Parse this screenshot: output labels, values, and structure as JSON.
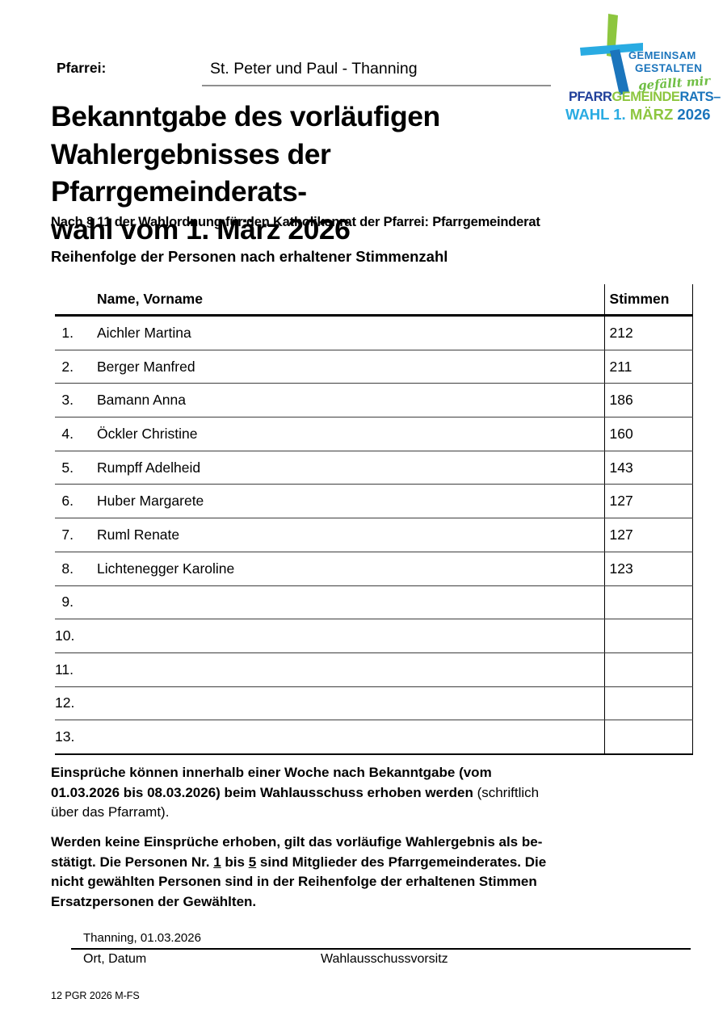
{
  "page": {
    "pfarrei_label": "Pfarrei:",
    "pfarrei_value": "St. Peter und Paul - Thanning",
    "title": "Bekanntgabe des vorläufigen\nWahlergebnisses der Pfarrgemeinderats-\nwahl vom 1. März 2026",
    "subtitle": "Nach § 11 der Wahlordnung für den Katholikenrat der Pfarrei: Pfarrgemeinderat",
    "section_heading": "Reihenfolge der Personen nach erhaltener Stimmenzahl"
  },
  "logo": {
    "tagline1": "GEMEINSAM",
    "tagline2": "GESTALTEN",
    "script": "gefällt mir",
    "colors": {
      "dark_blue": "#21409a",
      "medium_blue": "#1b75bc",
      "light_blue": "#29abe2",
      "green": "#8dc63f"
    },
    "wordmark": {
      "line1": [
        {
          "text": "PFARR",
          "color": "#21409a"
        },
        {
          "text": "GEMEINDE",
          "color": "#8dc63f"
        },
        {
          "text": "RATS–",
          "color": "#1b75bc"
        }
      ],
      "line2": [
        {
          "text": "WAHL 1. ",
          "color": "#29abe2"
        },
        {
          "text": "MÄRZ ",
          "color": "#8dc63f"
        },
        {
          "text": "2026",
          "color": "#1b75bc"
        }
      ]
    }
  },
  "table": {
    "headers": {
      "name": "Name, Vorname",
      "votes": "Stimmen"
    },
    "rows": [
      {
        "num": "1.",
        "name": "Aichler Martina",
        "votes": "212"
      },
      {
        "num": "2.",
        "name": "Berger Manfred",
        "votes": "211"
      },
      {
        "num": "3.",
        "name": "Bamann Anna",
        "votes": "186"
      },
      {
        "num": "4.",
        "name": "Öckler Christine",
        "votes": "160"
      },
      {
        "num": "5.",
        "name": "Rumpff Adelheid",
        "votes": "143"
      },
      {
        "num": "6.",
        "name": "Huber Margarete",
        "votes": "127"
      },
      {
        "num": "7.",
        "name": "Ruml Renate",
        "votes": "127"
      },
      {
        "num": "8.",
        "name": "Lichtenegger Karoline",
        "votes": "123"
      },
      {
        "num": "9.",
        "name": "",
        "votes": ""
      },
      {
        "num": "10.",
        "name": "",
        "votes": ""
      },
      {
        "num": "11.",
        "name": "",
        "votes": ""
      },
      {
        "num": "12.",
        "name": "",
        "votes": ""
      },
      {
        "num": "13.",
        "name": "",
        "votes": ""
      }
    ]
  },
  "paragraph1": {
    "bold": "Einsprüche können innerhalb einer Woche nach Bekanntgabe (vom\n01.03.2026 bis 08.03.2026) beim Wahlausschuss erhoben werden",
    "normal": " (schriftlich\nüber das Pfarramt)."
  },
  "paragraph2": {
    "part1": "Werden keine Einsprüche erhoben, gilt das vorläufige Wahlergebnis als be-\nstätigt. Die Personen Nr. ",
    "u1": "1",
    "part2": " bis ",
    "u2": "5",
    "part3": " sind Mitglieder des Pfarrgemeinderates. Die\nnicht gewählten Personen sind in der Reihenfolge der erhaltenen Stimmen\nErsatzpersonen der Gewählten."
  },
  "signature": {
    "value": "Thanning, 01.03.2026",
    "label_left": "Ort, Datum",
    "label_right": "Wahlausschussvorsitz"
  },
  "footer": "12 PGR 2026 M-FS"
}
